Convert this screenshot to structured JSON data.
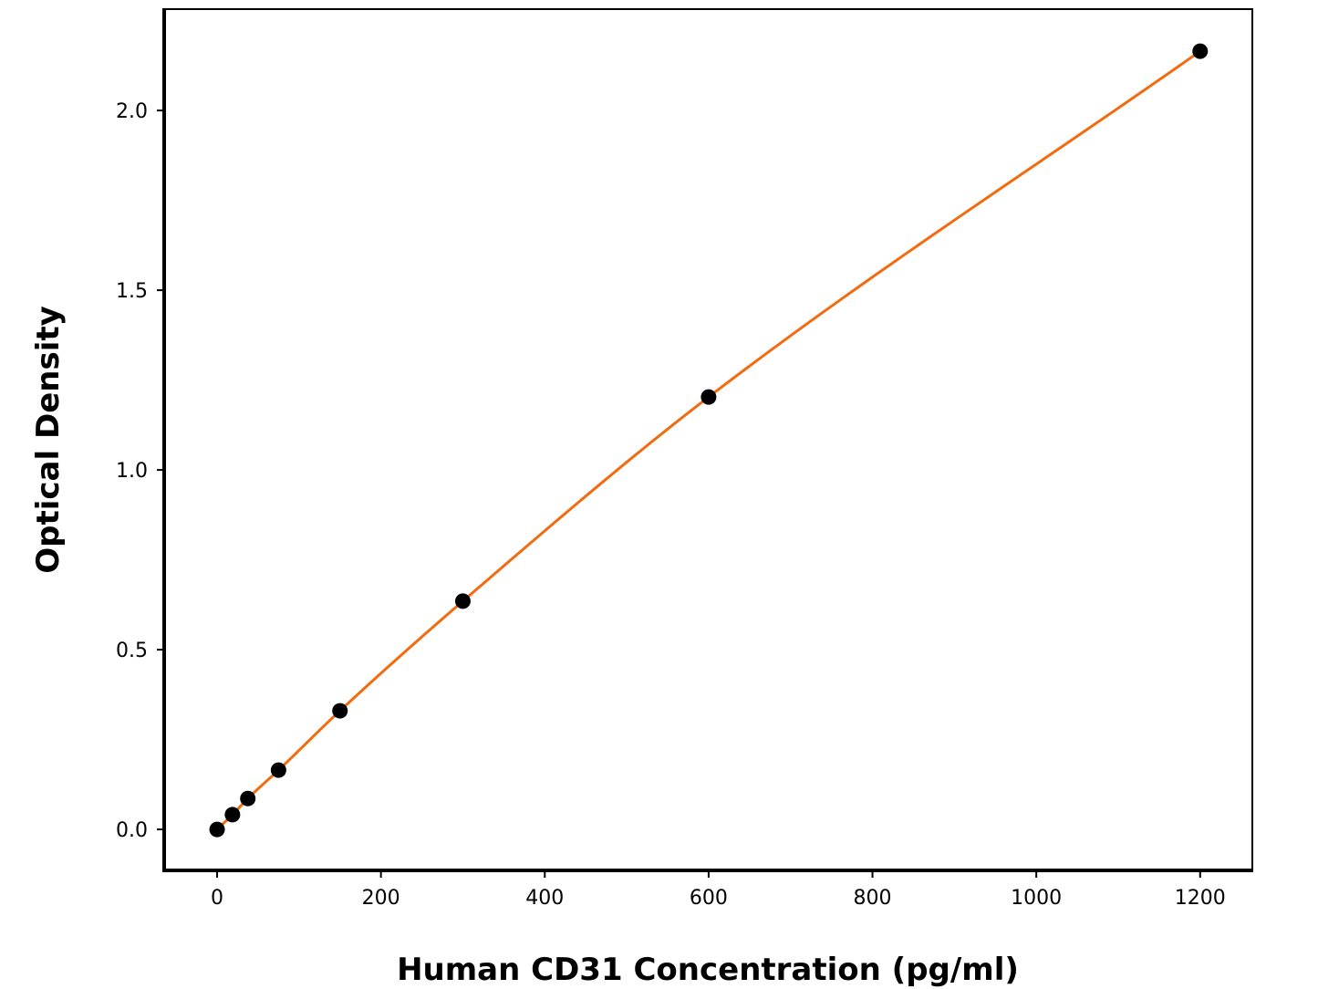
{
  "chart_data": {
    "type": "line",
    "title": "",
    "xlabel": "Human CD31 Concentration (pg/ml)",
    "ylabel": "Optical Density",
    "xlim": [
      -64.6,
      1263.7
    ],
    "ylim": [
      -0.114,
      2.282
    ],
    "xticks": [
      0,
      200,
      400,
      600,
      800,
      1000,
      1200
    ],
    "xtick_labels": [
      "0",
      "200",
      "400",
      "600",
      "800",
      "1000",
      "1200"
    ],
    "yticks": [
      0.0,
      0.5,
      1.0,
      1.5,
      2.0
    ],
    "ytick_labels": [
      "0.0",
      "0.5",
      "1.0",
      "1.5",
      "2.0"
    ],
    "grid": false,
    "series": [
      {
        "x": [
          0,
          18.75,
          37.5,
          75,
          150,
          300,
          600,
          1200
        ],
        "y": [
          0.0,
          0.041,
          0.086,
          0.165,
          0.33,
          0.635,
          1.203,
          2.165
        ],
        "marker_color": "#000000",
        "line_color": "#f26b0f"
      }
    ]
  }
}
